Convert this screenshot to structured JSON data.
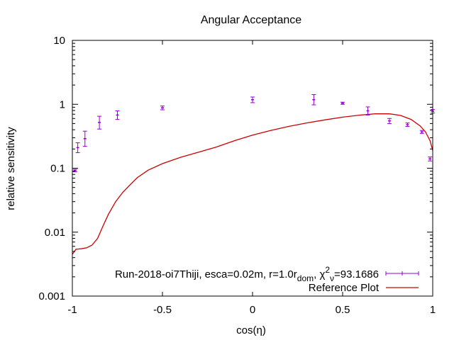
{
  "chart_data": {
    "type": "scatter",
    "title": "Angular Acceptance",
    "xlabel": "cos(η)",
    "ylabel": "relative sensitivity",
    "xlim": [
      -1,
      1
    ],
    "ylim": [
      0.001,
      10
    ],
    "yscale": "log",
    "grid": false,
    "legend_position": "bottom-right",
    "x_ticks": [
      -1,
      -0.5,
      0,
      0.5,
      1
    ],
    "x_tick_labels": [
      "-1",
      "-0.5",
      "0",
      "0.5",
      "1"
    ],
    "y_ticks": [
      0.001,
      0.01,
      0.1,
      1,
      10
    ],
    "y_tick_labels": [
      "0.001",
      "0.01",
      "0.1",
      "1",
      "10"
    ],
    "series": [
      {
        "name_parts": {
          "prefix": "Run-2018-oi7Thiji, esca=0.02m, r=1.0r",
          "sub1": "dom",
          "mid": ", χ",
          "sup": "2",
          "sub2": "ν",
          "suffix": "=93.1686"
        },
        "kind": "errorbars",
        "color": "#9400d3",
        "points": [
          {
            "x": -0.985,
            "y": 0.092,
            "ylow": 0.088,
            "yhigh": 0.096
          },
          {
            "x": -0.97,
            "y": 0.21,
            "ylow": 0.175,
            "yhigh": 0.25
          },
          {
            "x": -0.93,
            "y": 0.29,
            "ylow": 0.22,
            "yhigh": 0.38
          },
          {
            "x": -0.85,
            "y": 0.52,
            "ylow": 0.41,
            "yhigh": 0.65
          },
          {
            "x": -0.75,
            "y": 0.68,
            "ylow": 0.58,
            "yhigh": 0.79
          },
          {
            "x": -0.5,
            "y": 0.88,
            "ylow": 0.82,
            "yhigh": 0.94
          },
          {
            "x": 0.0,
            "y": 1.18,
            "ylow": 1.06,
            "yhigh": 1.3
          },
          {
            "x": 0.34,
            "y": 1.18,
            "ylow": 0.98,
            "yhigh": 1.42
          },
          {
            "x": 0.5,
            "y": 1.04,
            "ylow": 1.0,
            "yhigh": 1.08
          },
          {
            "x": 0.64,
            "y": 0.79,
            "ylow": 0.68,
            "yhigh": 0.91
          },
          {
            "x": 0.76,
            "y": 0.55,
            "ylow": 0.5,
            "yhigh": 0.6
          },
          {
            "x": 0.86,
            "y": 0.48,
            "ylow": 0.45,
            "yhigh": 0.51
          },
          {
            "x": 0.94,
            "y": 0.37,
            "ylow": 0.35,
            "yhigh": 0.39
          },
          {
            "x": 0.985,
            "y": 0.14,
            "ylow": 0.13,
            "yhigh": 0.15
          },
          {
            "x": 1.0,
            "y": 0.78,
            "ylow": 0.73,
            "yhigh": 0.83
          }
        ]
      },
      {
        "name": "Reference Plot",
        "kind": "line",
        "color": "#cc0000",
        "points": [
          {
            "x": -1.0,
            "y": 0.0045
          },
          {
            "x": -0.98,
            "y": 0.0054
          },
          {
            "x": -0.95,
            "y": 0.0055
          },
          {
            "x": -0.92,
            "y": 0.0057
          },
          {
            "x": -0.89,
            "y": 0.0063
          },
          {
            "x": -0.86,
            "y": 0.008
          },
          {
            "x": -0.83,
            "y": 0.0125
          },
          {
            "x": -0.8,
            "y": 0.019
          },
          {
            "x": -0.76,
            "y": 0.03
          },
          {
            "x": -0.72,
            "y": 0.042
          },
          {
            "x": -0.68,
            "y": 0.055
          },
          {
            "x": -0.64,
            "y": 0.071
          },
          {
            "x": -0.58,
            "y": 0.093
          },
          {
            "x": -0.5,
            "y": 0.118
          },
          {
            "x": -0.4,
            "y": 0.148
          },
          {
            "x": -0.3,
            "y": 0.178
          },
          {
            "x": -0.2,
            "y": 0.215
          },
          {
            "x": -0.1,
            "y": 0.27
          },
          {
            "x": 0.0,
            "y": 0.33
          },
          {
            "x": 0.1,
            "y": 0.39
          },
          {
            "x": 0.2,
            "y": 0.45
          },
          {
            "x": 0.3,
            "y": 0.51
          },
          {
            "x": 0.4,
            "y": 0.57
          },
          {
            "x": 0.5,
            "y": 0.63
          },
          {
            "x": 0.6,
            "y": 0.68
          },
          {
            "x": 0.68,
            "y": 0.71
          },
          {
            "x": 0.76,
            "y": 0.71
          },
          {
            "x": 0.82,
            "y": 0.67
          },
          {
            "x": 0.88,
            "y": 0.58
          },
          {
            "x": 0.93,
            "y": 0.46
          },
          {
            "x": 0.96,
            "y": 0.37
          },
          {
            "x": 0.985,
            "y": 0.27
          },
          {
            "x": 1.0,
            "y": 0.19
          }
        ]
      }
    ]
  }
}
